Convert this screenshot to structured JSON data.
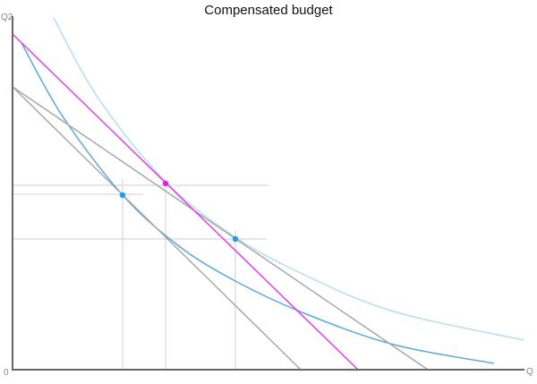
{
  "title": "Compensated budget",
  "axes": {
    "y_label": "Q2",
    "x_label": "Q",
    "origin_label": "0"
  },
  "colors": {
    "new_budget": "#e040e8",
    "budget_lines": "#a8a8a8",
    "indifference_low": "#5aa8e0",
    "indifference_high": "#b8dcf4",
    "tangency_points": "#1a9ff0",
    "new_tangency_point": "#e020e0",
    "guides": "#cfcfcf",
    "axis": "#666666"
  }
}
